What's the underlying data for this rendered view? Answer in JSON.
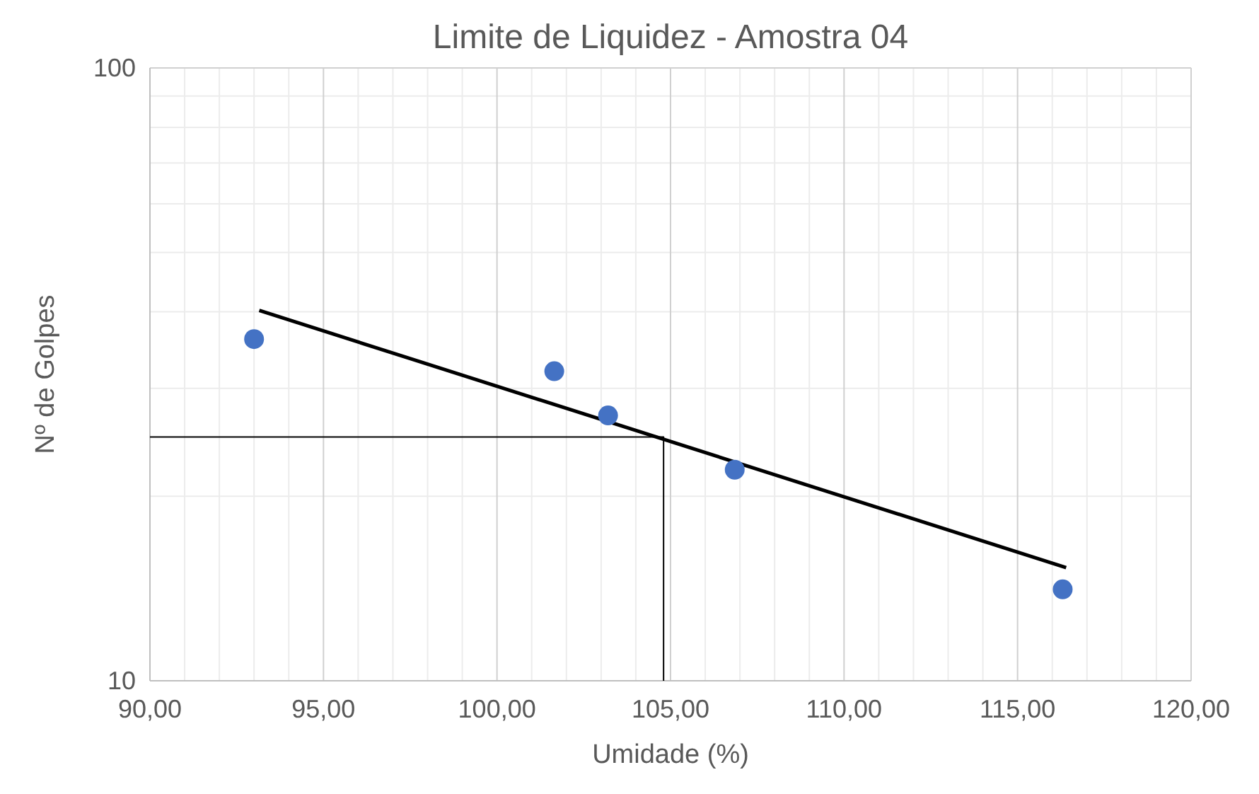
{
  "chart_data": {
    "type": "scatter",
    "title": "Limite de Liquidez - Amostra 04",
    "xlabel": "Umidade (%)",
    "ylabel": "Nº de Golpes",
    "log": "y",
    "grid": true,
    "xlim": [
      90,
      120
    ],
    "ylim": [
      10,
      100
    ],
    "xticks": [
      {
        "value": 90,
        "label": "90,00"
      },
      {
        "value": 95,
        "label": "95,00"
      },
      {
        "value": 100,
        "label": "100,00"
      },
      {
        "value": 105,
        "label": "105,00"
      },
      {
        "value": 110,
        "label": "110,00"
      },
      {
        "value": 115,
        "label": "115,00"
      },
      {
        "value": 120,
        "label": "120,00"
      }
    ],
    "yticks": [
      10,
      100
    ],
    "series": [
      {
        "color": "#4472c4",
        "marker": "circle",
        "x": [
          93.0,
          101.65,
          103.2,
          106.85,
          116.3
        ],
        "values": [
          36.1,
          32.0,
          27.1,
          22.1,
          14.1
        ]
      },
      {
        "type": "line",
        "color": "#000000",
        "x": [
          93.15,
          116.4
        ],
        "values": [
          40.2,
          15.3
        ],
        "marker": "none"
      },
      {
        "type": "line",
        "color": "#000000",
        "x": [
          90,
          104.8,
          104.8
        ],
        "values": [
          25,
          25,
          10
        ],
        "marker": "none"
      }
    ]
  }
}
